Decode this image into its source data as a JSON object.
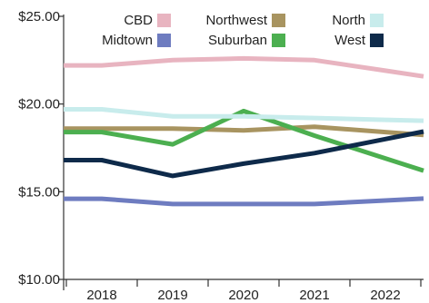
{
  "chart_data": {
    "type": "line",
    "title": "",
    "xlabel": "",
    "ylabel": "",
    "categories": [
      "2018",
      "2019",
      "2020",
      "2021",
      "2022"
    ],
    "yticks": [
      "$10.00",
      "$15.00",
      "$20.00",
      "$25.00"
    ],
    "ylim": [
      10,
      25
    ],
    "grid": false,
    "legend_position": "top",
    "series": [
      {
        "name": "CBD",
        "color": "#E8B4C0",
        "values": [
          22.2,
          22.5,
          22.6,
          22.5,
          21.9
        ]
      },
      {
        "name": "Midtown",
        "color": "#6E7CC0",
        "values": [
          14.6,
          14.3,
          14.3,
          14.3,
          14.5
        ]
      },
      {
        "name": "Northwest",
        "color": "#A89460",
        "values": [
          18.6,
          18.6,
          18.5,
          18.7,
          18.4
        ]
      },
      {
        "name": "Suburban",
        "color": "#4CAF50",
        "values": [
          18.4,
          17.7,
          19.6,
          18.2,
          16.9
        ]
      },
      {
        "name": "North",
        "color": "#C8ECEC",
        "values": [
          19.7,
          19.3,
          19.3,
          19.2,
          19.1
        ]
      },
      {
        "name": "West",
        "color": "#0E2A4A",
        "values": [
          16.8,
          15.9,
          16.6,
          17.2,
          18.0
        ]
      }
    ]
  }
}
